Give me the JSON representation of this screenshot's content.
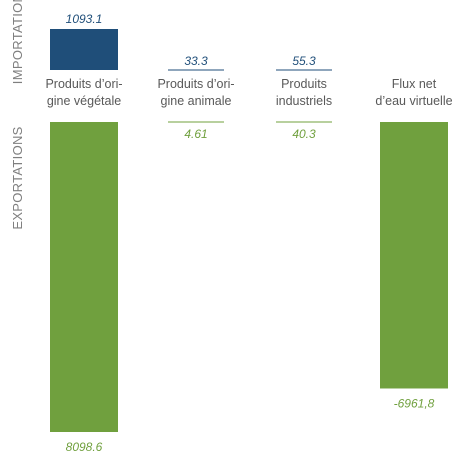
{
  "chart_data": {
    "type": "bar",
    "side_labels": {
      "imports": "IMPORTATIONS",
      "exports": "EXPORTATIONS"
    },
    "categories": [
      {
        "label_lines": [
          "Produits d’ori-",
          "gine végétale"
        ]
      },
      {
        "label_lines": [
          "Produits d’ori-",
          "gine animale"
        ]
      },
      {
        "label_lines": [
          "Produits",
          "industriels"
        ]
      },
      {
        "label_lines": [
          "Flux net",
          "d’eau virtuelle"
        ]
      }
    ],
    "series": [
      {
        "values": [
          1093.1,
          33.3,
          55.3,
          null
        ],
        "labels": [
          "1093.1",
          "33.3",
          "55.3",
          ""
        ],
        "color": "#1f4e79"
      },
      {
        "values": [
          8098.6,
          4.61,
          40.3,
          -6961.8
        ],
        "labels": [
          "8098.6",
          "4.61",
          "40.3",
          "-6961,8"
        ],
        "color": "#70a03e"
      }
    ]
  }
}
